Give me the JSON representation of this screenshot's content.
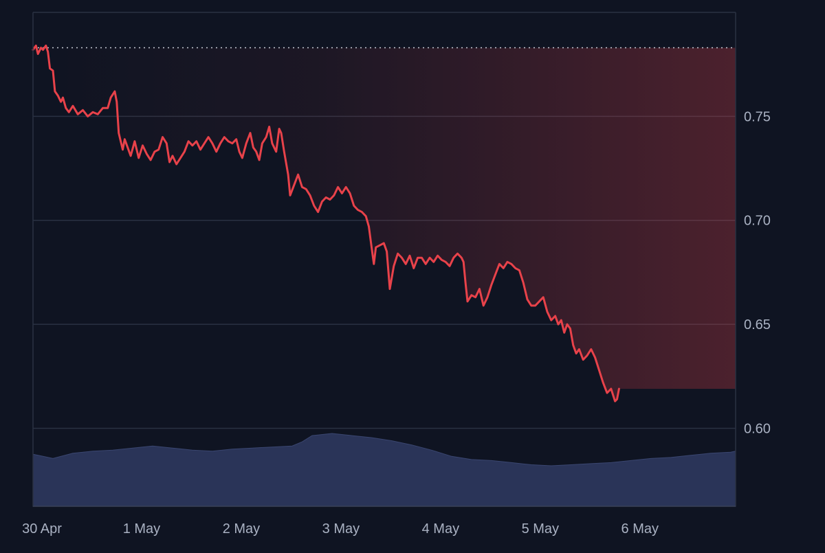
{
  "chart_data": {
    "type": "line",
    "title": "",
    "xlabel": "",
    "ylabel": "",
    "ylim": [
      0.5625,
      0.8
    ],
    "y_ticks": [
      {
        "value": 0.75,
        "label": "0.75"
      },
      {
        "value": 0.7,
        "label": "0.70"
      },
      {
        "value": 0.65,
        "label": "0.65"
      },
      {
        "value": 0.6,
        "label": "0.60"
      }
    ],
    "x_ticks": [
      {
        "x": 0,
        "label": "30 Apr"
      },
      {
        "x": 1,
        "label": "1 May"
      },
      {
        "x": 2,
        "label": "2 May"
      },
      {
        "x": 3,
        "label": "3 May"
      },
      {
        "x": 4,
        "label": "4 May"
      },
      {
        "x": 5,
        "label": "5 May"
      },
      {
        "x": 6,
        "label": "6 May"
      }
    ],
    "x_range_days": [
      0,
      7.05
    ],
    "reference_line": {
      "value": 0.783,
      "style": "dotted"
    },
    "grid": true,
    "colors": {
      "background": "#0f1422",
      "line_down": "#e8424a",
      "line_up": "#2fbf87",
      "volume": "#2a3458",
      "grid": "#2a3142",
      "axis_text": "#aab2c3"
    },
    "series": [
      {
        "values": [
          [
            0.0,
            0.782
          ],
          [
            0.03,
            0.784
          ],
          [
            0.05,
            0.78
          ],
          [
            0.08,
            0.783
          ],
          [
            0.1,
            0.782
          ],
          [
            0.13,
            0.784
          ],
          [
            0.15,
            0.781
          ],
          [
            0.17,
            0.773
          ],
          [
            0.2,
            0.772
          ],
          [
            0.22,
            0.762
          ],
          [
            0.25,
            0.76
          ],
          [
            0.28,
            0.757
          ],
          [
            0.3,
            0.759
          ],
          [
            0.33,
            0.754
          ],
          [
            0.36,
            0.752
          ],
          [
            0.4,
            0.755
          ],
          [
            0.45,
            0.751
          ],
          [
            0.5,
            0.753
          ],
          [
            0.55,
            0.75
          ],
          [
            0.6,
            0.752
          ],
          [
            0.65,
            0.751
          ],
          [
            0.7,
            0.754
          ],
          [
            0.75,
            0.754
          ],
          [
            0.78,
            0.759
          ],
          [
            0.82,
            0.762
          ],
          [
            0.84,
            0.757
          ],
          [
            0.86,
            0.742
          ],
          [
            0.88,
            0.738
          ],
          [
            0.9,
            0.734
          ],
          [
            0.92,
            0.739
          ],
          [
            0.95,
            0.735
          ],
          [
            0.98,
            0.731
          ],
          [
            1.02,
            0.738
          ],
          [
            1.06,
            0.73
          ],
          [
            1.1,
            0.736
          ],
          [
            1.14,
            0.732
          ],
          [
            1.18,
            0.729
          ],
          [
            1.22,
            0.733
          ],
          [
            1.26,
            0.734
          ],
          [
            1.3,
            0.74
          ],
          [
            1.34,
            0.737
          ],
          [
            1.37,
            0.728
          ],
          [
            1.4,
            0.731
          ],
          [
            1.44,
            0.727
          ],
          [
            1.48,
            0.73
          ],
          [
            1.52,
            0.733
          ],
          [
            1.56,
            0.738
          ],
          [
            1.6,
            0.736
          ],
          [
            1.64,
            0.738
          ],
          [
            1.68,
            0.734
          ],
          [
            1.72,
            0.737
          ],
          [
            1.76,
            0.74
          ],
          [
            1.8,
            0.737
          ],
          [
            1.84,
            0.733
          ],
          [
            1.88,
            0.737
          ],
          [
            1.92,
            0.74
          ],
          [
            1.96,
            0.738
          ],
          [
            2.0,
            0.737
          ],
          [
            2.04,
            0.739
          ],
          [
            2.07,
            0.733
          ],
          [
            2.1,
            0.73
          ],
          [
            2.14,
            0.737
          ],
          [
            2.18,
            0.742
          ],
          [
            2.21,
            0.735
          ],
          [
            2.24,
            0.733
          ],
          [
            2.27,
            0.729
          ],
          [
            2.3,
            0.737
          ],
          [
            2.34,
            0.74
          ],
          [
            2.37,
            0.745
          ],
          [
            2.4,
            0.737
          ],
          [
            2.44,
            0.733
          ],
          [
            2.47,
            0.744
          ],
          [
            2.49,
            0.742
          ],
          [
            2.52,
            0.733
          ],
          [
            2.56,
            0.722
          ],
          [
            2.58,
            0.712
          ],
          [
            2.62,
            0.717
          ],
          [
            2.66,
            0.722
          ],
          [
            2.7,
            0.716
          ],
          [
            2.74,
            0.715
          ],
          [
            2.78,
            0.712
          ],
          [
            2.82,
            0.707
          ],
          [
            2.86,
            0.704
          ],
          [
            2.9,
            0.709
          ],
          [
            2.94,
            0.711
          ],
          [
            2.98,
            0.71
          ],
          [
            3.02,
            0.712
          ],
          [
            3.06,
            0.716
          ],
          [
            3.1,
            0.713
          ],
          [
            3.14,
            0.716
          ],
          [
            3.18,
            0.713
          ],
          [
            3.22,
            0.707
          ],
          [
            3.26,
            0.705
          ],
          [
            3.3,
            0.704
          ],
          [
            3.34,
            0.702
          ],
          [
            3.37,
            0.697
          ],
          [
            3.4,
            0.686
          ],
          [
            3.42,
            0.679
          ],
          [
            3.44,
            0.687
          ],
          [
            3.48,
            0.688
          ],
          [
            3.52,
            0.689
          ],
          [
            3.55,
            0.685
          ],
          [
            3.58,
            0.667
          ],
          [
            3.62,
            0.678
          ],
          [
            3.66,
            0.684
          ],
          [
            3.7,
            0.682
          ],
          [
            3.74,
            0.679
          ],
          [
            3.78,
            0.683
          ],
          [
            3.82,
            0.677
          ],
          [
            3.86,
            0.682
          ],
          [
            3.9,
            0.682
          ],
          [
            3.94,
            0.679
          ],
          [
            3.98,
            0.682
          ],
          [
            4.02,
            0.68
          ],
          [
            4.06,
            0.683
          ],
          [
            4.1,
            0.681
          ],
          [
            4.14,
            0.68
          ],
          [
            4.18,
            0.678
          ],
          [
            4.22,
            0.682
          ],
          [
            4.26,
            0.684
          ],
          [
            4.3,
            0.682
          ],
          [
            4.32,
            0.68
          ],
          [
            4.34,
            0.67
          ],
          [
            4.36,
            0.661
          ],
          [
            4.4,
            0.664
          ],
          [
            4.44,
            0.663
          ],
          [
            4.48,
            0.667
          ],
          [
            4.52,
            0.659
          ],
          [
            4.56,
            0.663
          ],
          [
            4.6,
            0.669
          ],
          [
            4.64,
            0.674
          ],
          [
            4.68,
            0.679
          ],
          [
            4.72,
            0.677
          ],
          [
            4.76,
            0.68
          ],
          [
            4.8,
            0.679
          ],
          [
            4.84,
            0.677
          ],
          [
            4.88,
            0.676
          ],
          [
            4.92,
            0.67
          ],
          [
            4.96,
            0.662
          ],
          [
            5.0,
            0.659
          ],
          [
            5.04,
            0.659
          ],
          [
            5.08,
            0.661
          ],
          [
            5.12,
            0.663
          ],
          [
            5.16,
            0.656
          ],
          [
            5.2,
            0.652
          ],
          [
            5.24,
            0.654
          ],
          [
            5.27,
            0.65
          ],
          [
            5.3,
            0.652
          ],
          [
            5.33,
            0.646
          ],
          [
            5.36,
            0.65
          ],
          [
            5.39,
            0.648
          ],
          [
            5.42,
            0.64
          ],
          [
            5.45,
            0.636
          ],
          [
            5.48,
            0.638
          ],
          [
            5.52,
            0.633
          ],
          [
            5.56,
            0.635
          ],
          [
            5.6,
            0.638
          ],
          [
            5.64,
            0.634
          ],
          [
            5.68,
            0.628
          ],
          [
            5.72,
            0.622
          ],
          [
            5.76,
            0.617
          ],
          [
            5.8,
            0.619
          ],
          [
            5.84,
            0.613
          ],
          [
            5.86,
            0.614
          ],
          [
            5.88,
            0.619
          ]
        ]
      }
    ],
    "volume": [
      [
        0.0,
        0.5875
      ],
      [
        0.1,
        0.5865
      ],
      [
        0.2,
        0.5855
      ],
      [
        0.4,
        0.588
      ],
      [
        0.6,
        0.589
      ],
      [
        0.8,
        0.5895
      ],
      [
        1.0,
        0.5905
      ],
      [
        1.2,
        0.5915
      ],
      [
        1.4,
        0.5905
      ],
      [
        1.6,
        0.5895
      ],
      [
        1.8,
        0.589
      ],
      [
        2.0,
        0.59
      ],
      [
        2.2,
        0.5905
      ],
      [
        2.4,
        0.591
      ],
      [
        2.6,
        0.5915
      ],
      [
        2.7,
        0.5935
      ],
      [
        2.8,
        0.5965
      ],
      [
        3.0,
        0.5975
      ],
      [
        3.2,
        0.5965
      ],
      [
        3.4,
        0.5955
      ],
      [
        3.6,
        0.594
      ],
      [
        3.8,
        0.592
      ],
      [
        4.0,
        0.5895
      ],
      [
        4.2,
        0.5865
      ],
      [
        4.4,
        0.585
      ],
      [
        4.6,
        0.5845
      ],
      [
        4.8,
        0.5835
      ],
      [
        5.0,
        0.5825
      ],
      [
        5.2,
        0.582
      ],
      [
        5.4,
        0.5825
      ],
      [
        5.6,
        0.583
      ],
      [
        5.8,
        0.5835
      ],
      [
        6.0,
        0.5845
      ],
      [
        6.2,
        0.5855
      ],
      [
        6.4,
        0.586
      ],
      [
        6.6,
        0.587
      ],
      [
        6.8,
        0.588
      ],
      [
        7.0,
        0.5885
      ],
      [
        7.05,
        0.589
      ]
    ]
  }
}
